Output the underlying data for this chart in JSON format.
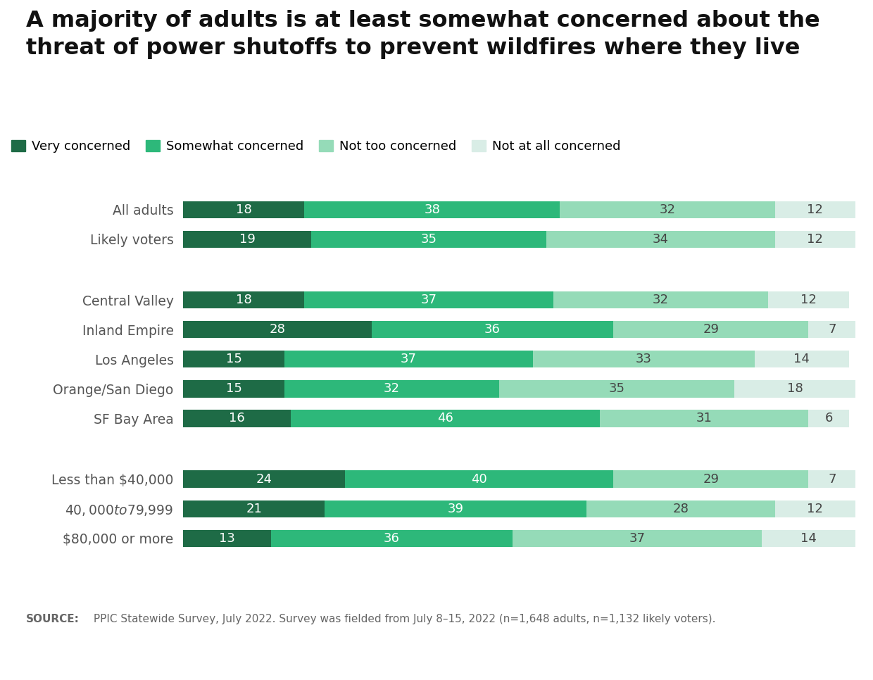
{
  "title": "A majority of adults is at least somewhat concerned about the\nthreat of power shutoffs to prevent wildfires where they live",
  "categories": [
    "All adults",
    "Likely voters",
    "Central Valley",
    "Inland Empire",
    "Los Angeles",
    "Orange/San Diego",
    "SF Bay Area",
    "Less than $40,000",
    "$40,000 to $79,999",
    "$80,000 or more"
  ],
  "data": [
    [
      18,
      38,
      32,
      12
    ],
    [
      19,
      35,
      34,
      12
    ],
    [
      18,
      37,
      32,
      12
    ],
    [
      28,
      36,
      29,
      7
    ],
    [
      15,
      37,
      33,
      14
    ],
    [
      15,
      32,
      35,
      18
    ],
    [
      16,
      46,
      31,
      6
    ],
    [
      24,
      40,
      29,
      7
    ],
    [
      21,
      39,
      28,
      12
    ],
    [
      13,
      36,
      37,
      14
    ]
  ],
  "group_separators_after": [
    1,
    6
  ],
  "colors": [
    "#1e6b46",
    "#2db87a",
    "#95dbb8",
    "#d9ede6"
  ],
  "legend_labels": [
    "Very concerned",
    "Somewhat concerned",
    "Not too concerned",
    "Not at all concerned"
  ],
  "source_bold": "SOURCE:",
  "source_rest": " PPIC Statewide Survey, July 2022. Survey was fielded from July 8–15, 2022 (n=1,648 adults, n=1,132 likely voters).",
  "bar_height": 0.58,
  "bg_color": "#ffffff",
  "footer_bg": "#e3e3e3",
  "title_fontsize": 23,
  "label_fontsize": 13.5,
  "bar_label_fontsize": 13,
  "legend_fontsize": 13
}
